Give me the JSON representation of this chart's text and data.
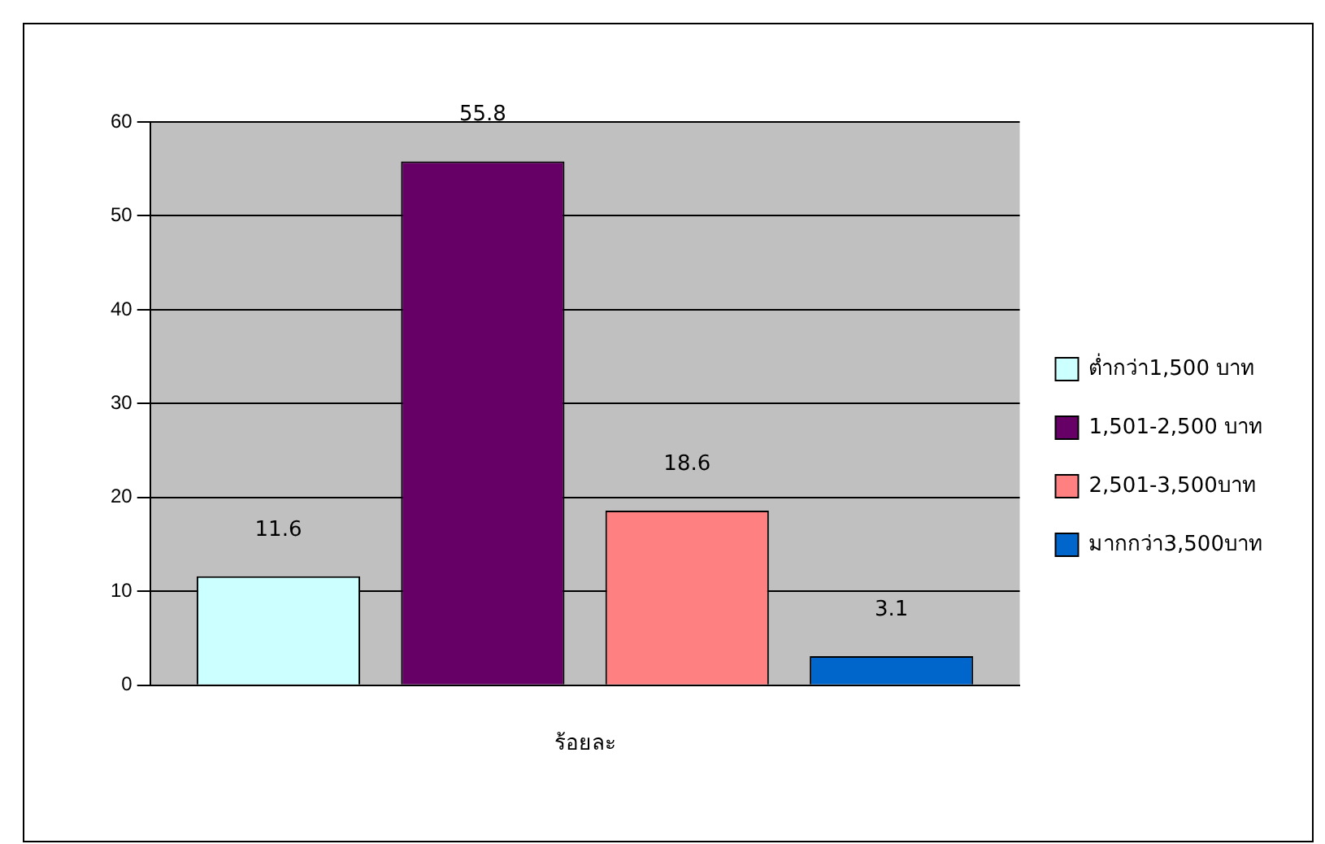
{
  "chart_data": {
    "type": "bar",
    "categories": [
      "ร้อยละ"
    ],
    "series": [
      {
        "name": "ต่ำกว่า1,500 บาท",
        "color": "#ccffff",
        "values": [
          11.6
        ]
      },
      {
        "name": "1,501-2,500 บาท",
        "color": "#660066",
        "values": [
          55.8
        ]
      },
      {
        "name": "2,501-3,500บาท",
        "color": "#ff8080",
        "values": [
          18.6
        ]
      },
      {
        "name": "มากกว่า3,500บาท",
        "color": "#0066cc",
        "values": [
          3.1
        ]
      }
    ],
    "ylim": [
      0,
      60
    ],
    "yticks": [
      0,
      10,
      20,
      30,
      40,
      50,
      60
    ],
    "grid": "y",
    "legend": "right",
    "data_labels": true
  }
}
